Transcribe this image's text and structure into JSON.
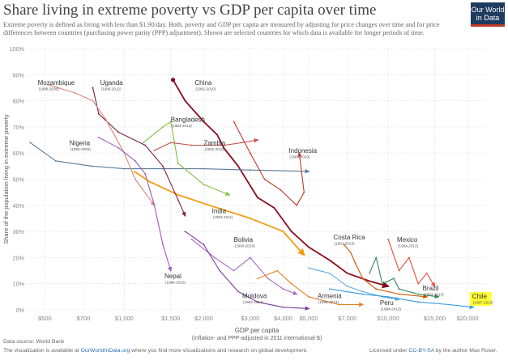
{
  "header": {
    "title": "Share living in extreme poverty vs GDP per capita over time",
    "subtitle": "Extreme poverty is defined as living with less than $1.90/day. Both, poverty and GDP per capita are measured by adjusting for price changes over time and for price differences between countries (purchasing power parity (PPP) adjustment). Shown are selected countries for which data is available for longer periods of time.",
    "logo_line1": "Our World",
    "logo_line2": "in Data"
  },
  "footer": {
    "source": "Data source: World Bank",
    "visualization_prefix": "The visualization is available at ",
    "visualization_link": "OurWorldInData.org",
    "visualization_suffix": " where you find more visualizations and research on global development.",
    "license_prefix": "Licensed under ",
    "license_link": "CC-BY-SA",
    "license_suffix": " by the author Max Roser."
  },
  "colors": {
    "background": "#ffffff",
    "grid": "#dddddd",
    "axis_text": "#888888",
    "highlight": "#ffff33"
  },
  "chart_data": {
    "type": "line",
    "xlabel": "GDP per capita",
    "xlabel_sub": "(Inflation- and PPP-adjusted in 2011 international-$)",
    "ylabel": "Share of the population living in extreme poverty",
    "x_scale": "log",
    "xlim": [
      430,
      23500
    ],
    "ylim": [
      0,
      100
    ],
    "x_ticks": [
      {
        "value": 500,
        "label": "$500"
      },
      {
        "value": 700,
        "label": "$700"
      },
      {
        "value": 1000,
        "label": "$1,000"
      },
      {
        "value": 1500,
        "label": "$1,500"
      },
      {
        "value": 2000,
        "label": "$2,000"
      },
      {
        "value": 3000,
        "label": "$3,000"
      },
      {
        "value": 4000,
        "label": "$4,000"
      },
      {
        "value": 5000,
        "label": "$5,000"
      },
      {
        "value": 7000,
        "label": "$7,000"
      },
      {
        "value": 10000,
        "label": "$10,000"
      },
      {
        "value": 15000,
        "label": "$15,000"
      },
      {
        "value": 20000,
        "label": "$20,000"
      }
    ],
    "y_ticks": [
      {
        "value": 0,
        "label": "0%"
      },
      {
        "value": 10,
        "label": "10%"
      },
      {
        "value": 20,
        "label": "20%"
      },
      {
        "value": 30,
        "label": "30%"
      },
      {
        "value": 40,
        "label": "40%"
      },
      {
        "value": 50,
        "label": "50%"
      },
      {
        "value": 60,
        "label": "60%"
      },
      {
        "value": 70,
        "label": "70%"
      },
      {
        "value": 80,
        "label": "80%"
      },
      {
        "value": 90,
        "label": "90%"
      },
      {
        "value": 100,
        "label": "100%"
      }
    ],
    "grid": true,
    "series": [
      {
        "name": "China",
        "years": "(1981-2010)",
        "color": "#8b0a1e",
        "width": 1.8,
        "start_marker": true,
        "label_at": [
          1850,
          86
        ],
        "points": [
          [
            1530,
            88
          ],
          [
            1700,
            80
          ],
          [
            2000,
            72
          ],
          [
            2250,
            67
          ],
          [
            2380,
            62
          ],
          [
            2700,
            55
          ],
          [
            3200,
            43
          ],
          [
            3700,
            39
          ],
          [
            4300,
            30
          ],
          [
            5000,
            24
          ],
          [
            6000,
            19
          ],
          [
            7000,
            14
          ],
          [
            8500,
            11
          ],
          [
            10000,
            9
          ]
        ]
      },
      {
        "name": "India",
        "years": "(1983-2011)",
        "color": "#f39c12",
        "width": 1.8,
        "label_at": [
          2150,
          37
        ],
        "points": [
          [
            1090,
            53
          ],
          [
            1250,
            49
          ],
          [
            1600,
            44
          ],
          [
            2100,
            40
          ],
          [
            3000,
            35
          ],
          [
            4000,
            30
          ],
          [
            4800,
            21
          ]
        ]
      },
      {
        "name": "Nigeria",
        "years": "(1985-2009)",
        "color": "#5b7a99",
        "width": 1.1,
        "label_at": [
          620,
          63
        ],
        "points": [
          [
            440,
            64
          ],
          [
            550,
            57
          ],
          [
            750,
            55
          ],
          [
            1000,
            54
          ],
          [
            1400,
            54
          ],
          [
            2000,
            54
          ],
          [
            3000,
            53.5
          ],
          [
            5000,
            53
          ]
        ]
      },
      {
        "name": "Indonesia",
        "years": "(1984-2010)",
        "color": "#c0392b",
        "width": 1.1,
        "label_at": [
          4200,
          60
        ],
        "points": [
          [
            2600,
            72
          ],
          [
            3000,
            60
          ],
          [
            3400,
            50
          ],
          [
            3900,
            46
          ],
          [
            4500,
            40
          ],
          [
            4800,
            45
          ],
          [
            4600,
            60
          ]
        ]
      },
      {
        "name": "Bangladesh",
        "years": "(1983-2010)",
        "color": "#7fbf3f",
        "width": 1.1,
        "label_at": [
          1500,
          72
        ],
        "points": [
          [
            1180,
            64
          ],
          [
            1400,
            70
          ],
          [
            1500,
            72
          ],
          [
            1600,
            56
          ],
          [
            2000,
            48
          ],
          [
            2500,
            44
          ]
        ]
      },
      {
        "name": "Zambia",
        "years": "(1991-2010)",
        "color": "#c0504d",
        "width": 1.1,
        "label_at": [
          2000,
          63
        ],
        "points": [
          [
            1300,
            61
          ],
          [
            1500,
            64
          ],
          [
            1800,
            63
          ],
          [
            2400,
            63
          ],
          [
            2800,
            64
          ],
          [
            3200,
            65
          ]
        ]
      },
      {
        "name": "Uganda",
        "years": "(1989-2012)",
        "color": "#7a1f3d",
        "width": 1.1,
        "label_at": [
          810,
          86
        ],
        "points": [
          [
            760,
            85
          ],
          [
            800,
            75
          ],
          [
            950,
            68
          ],
          [
            1200,
            63
          ],
          [
            1400,
            55
          ],
          [
            1600,
            42
          ],
          [
            1700,
            36
          ]
        ]
      },
      {
        "name": "Mozambique",
        "years": "(1996-2008)",
        "color": "#d98880",
        "width": 1.1,
        "label_at": [
          470,
          86
        ],
        "points": [
          [
            520,
            86
          ],
          [
            650,
            83
          ],
          [
            760,
            80
          ],
          [
            850,
            73
          ],
          [
            1000,
            60
          ],
          [
            1100,
            50
          ],
          [
            1300,
            40
          ]
        ]
      },
      {
        "name": "Nepal",
        "years": "(1984-2010)",
        "color": "#9b59b6",
        "width": 1.1,
        "label_at": [
          1420,
          12
        ],
        "points": [
          [
            800,
            66
          ],
          [
            950,
            62
          ],
          [
            1100,
            57
          ],
          [
            1200,
            52
          ],
          [
            1300,
            40
          ],
          [
            1400,
            25
          ],
          [
            1500,
            15
          ]
        ]
      },
      {
        "name": "Bolivia",
        "years": "(1990-2013)",
        "color": "#a569bd",
        "width": 1.1,
        "label_at": [
          2600,
          26
        ],
        "points": [
          [
            1800,
            27
          ],
          [
            2200,
            20
          ],
          [
            2600,
            15
          ],
          [
            3000,
            20
          ],
          [
            3500,
            12
          ],
          [
            4000,
            8
          ],
          [
            4500,
            6
          ]
        ]
      },
      {
        "name": "Moldova",
        "years": "(1992-2013)",
        "color": "#7d3c98",
        "width": 1.1,
        "label_at": [
          2800,
          4.5
        ],
        "points": [
          [
            1700,
            30
          ],
          [
            2000,
            25
          ],
          [
            2300,
            15
          ],
          [
            2700,
            7
          ],
          [
            3200,
            3
          ],
          [
            4000,
            1
          ],
          [
            5000,
            0.5
          ]
        ]
      },
      {
        "name": "Armenia",
        "years": "(1996-2013)",
        "color": "#e67e22",
        "width": 1.1,
        "label_at": [
          5400,
          4.5
        ],
        "points": [
          [
            3200,
            12
          ],
          [
            3800,
            15
          ],
          [
            4300,
            10
          ],
          [
            5000,
            5
          ],
          [
            6500,
            2
          ],
          [
            8000,
            2
          ]
        ]
      },
      {
        "name": "Costa Rica",
        "years": "(1981-2013)",
        "color": "#d35400",
        "width": 1.1,
        "label_at": [
          6200,
          27
        ],
        "points": [
          [
            6800,
            25
          ],
          [
            7200,
            22
          ],
          [
            7500,
            18
          ],
          [
            8000,
            12
          ],
          [
            9000,
            8
          ],
          [
            11000,
            6
          ],
          [
            14000,
            5
          ]
        ]
      },
      {
        "name": "Mexico",
        "years": "(1984-2012)",
        "color": "#e74c3c",
        "width": 1.1,
        "label_at": [
          10800,
          26
        ],
        "points": [
          [
            10000,
            27
          ],
          [
            11000,
            15
          ],
          [
            12000,
            20
          ],
          [
            13000,
            10
          ],
          [
            14000,
            14
          ],
          [
            15000,
            9
          ]
        ]
      },
      {
        "name": "Brazil",
        "years": "(1983-2013)",
        "color": "#2e8b57",
        "width": 1.1,
        "label_at": [
          13500,
          7.5
        ],
        "points": [
          [
            8500,
            14
          ],
          [
            9000,
            20
          ],
          [
            9500,
            10
          ],
          [
            10500,
            12
          ],
          [
            11000,
            8
          ],
          [
            13000,
            6
          ],
          [
            15500,
            5
          ]
        ]
      },
      {
        "name": "Peru",
        "years": "(1984-2013)",
        "color": "#5dade2",
        "width": 1.1,
        "label_at": [
          9300,
          1.8
        ],
        "points": [
          [
            5000,
            16
          ],
          [
            6000,
            14
          ],
          [
            7000,
            9
          ],
          [
            8000,
            7
          ],
          [
            9500,
            5
          ],
          [
            11000,
            4
          ]
        ]
      },
      {
        "name": "Chile",
        "years": "(1987-2013)",
        "color": "#3498db",
        "width": 1.1,
        "highlight": true,
        "label_at": [
          20800,
          4.3
        ],
        "points": [
          [
            6000,
            8
          ],
          [
            8000,
            6
          ],
          [
            10000,
            5
          ],
          [
            13000,
            3
          ],
          [
            17000,
            2
          ],
          [
            21000,
            1
          ]
        ]
      }
    ]
  }
}
